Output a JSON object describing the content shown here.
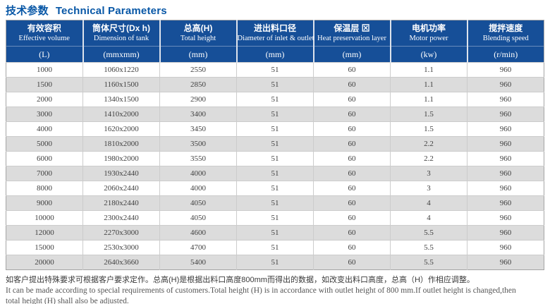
{
  "title": {
    "zh": "技术参数",
    "en": "Technical Parameters"
  },
  "table": {
    "columns": [
      {
        "zh": "有效容积",
        "en": "Effective volume",
        "unit": "(L)"
      },
      {
        "zh": "筒体尺寸(Dx h)",
        "en": "Dimension of tank",
        "unit": "(mmxmm)"
      },
      {
        "zh": "总高(H)",
        "en": "Total height",
        "unit": "(mm)"
      },
      {
        "zh": "进出料口径",
        "en": "Diameter of inlet & outlet",
        "unit": "(mm)"
      },
      {
        "zh": "保温层 ⊠",
        "en": "Heat preservation layer",
        "unit": "(mm)"
      },
      {
        "zh": "电机功率",
        "en": "Motor power",
        "unit": "(kw)"
      },
      {
        "zh": "搅拌速度",
        "en": "Blending speed",
        "unit": "(r/min)"
      }
    ],
    "rows": [
      [
        "1000",
        "1060x1220",
        "2550",
        "51",
        "60",
        "1.1",
        "960"
      ],
      [
        "1500",
        "1160x1500",
        "2850",
        "51",
        "60",
        "1.1",
        "960"
      ],
      [
        "2000",
        "1340x1500",
        "2900",
        "51",
        "60",
        "1.1",
        "960"
      ],
      [
        "3000",
        "1410x2000",
        "3400",
        "51",
        "60",
        "1.5",
        "960"
      ],
      [
        "4000",
        "1620x2000",
        "3450",
        "51",
        "60",
        "1.5",
        "960"
      ],
      [
        "5000",
        "1810x2000",
        "3500",
        "51",
        "60",
        "2.2",
        "960"
      ],
      [
        "6000",
        "1980x2000",
        "3550",
        "51",
        "60",
        "2.2",
        "960"
      ],
      [
        "7000",
        "1930x2440",
        "4000",
        "51",
        "60",
        "3",
        "960"
      ],
      [
        "8000",
        "2060x2440",
        "4000",
        "51",
        "60",
        "3",
        "960"
      ],
      [
        "9000",
        "2180x2440",
        "4050",
        "51",
        "60",
        "4",
        "960"
      ],
      [
        "10000",
        "2300x2440",
        "4050",
        "51",
        "60",
        "4",
        "960"
      ],
      [
        "12000",
        "2270x3000",
        "4600",
        "51",
        "60",
        "5.5",
        "960"
      ],
      [
        "15000",
        "2530x3000",
        "4700",
        "51",
        "60",
        "5.5",
        "960"
      ],
      [
        "20000",
        "2640x3660",
        "5400",
        "51",
        "60",
        "5.5",
        "960"
      ]
    ]
  },
  "footnote": {
    "zh": "如客户提出特殊要求可根据客户要求定作。总高(H)是根据出料口高度800mm而得出的数据，如改变出料口高度，总高（H）作相应调整。",
    "en1": "It can be made according to special requirements of customers.Total height (H) is in accordance with outlet height of 800 mm.If outlet height is changed,then",
    "en2": "total height (H) shall also be adjusted."
  },
  "colors": {
    "title": "#0857a6",
    "header_bg": "#164f98",
    "stripe": "#dcdcdc",
    "grid": "#cccccc"
  }
}
